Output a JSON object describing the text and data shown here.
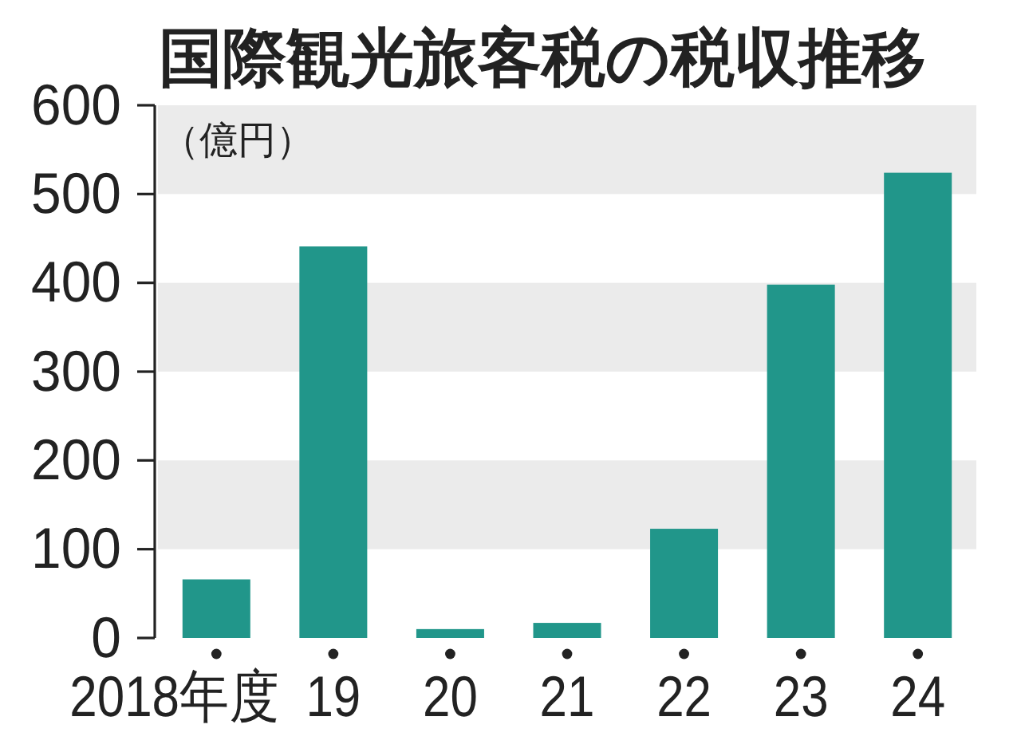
{
  "chart_data": {
    "type": "bar",
    "title": "国際観光旅客税の税収推移",
    "ylabel": "（億円）",
    "categories": [
      "2018年度",
      "19",
      "20",
      "21",
      "22",
      "23",
      "24"
    ],
    "values": [
      66,
      441,
      10,
      17,
      123,
      398,
      524
    ],
    "color": "#21968a",
    "ylim": [
      0,
      600
    ],
    "yticks": [
      0,
      100,
      200,
      300,
      400,
      500,
      600
    ],
    "bands": [
      {
        "axis": "y",
        "from": 100,
        "to": 200,
        "color": "#ebebeb"
      },
      {
        "axis": "y",
        "from": 300,
        "to": 400,
        "color": "#ebebeb"
      },
      {
        "axis": "y",
        "from": 500,
        "to": 600,
        "color": "#ebebeb"
      }
    ]
  }
}
